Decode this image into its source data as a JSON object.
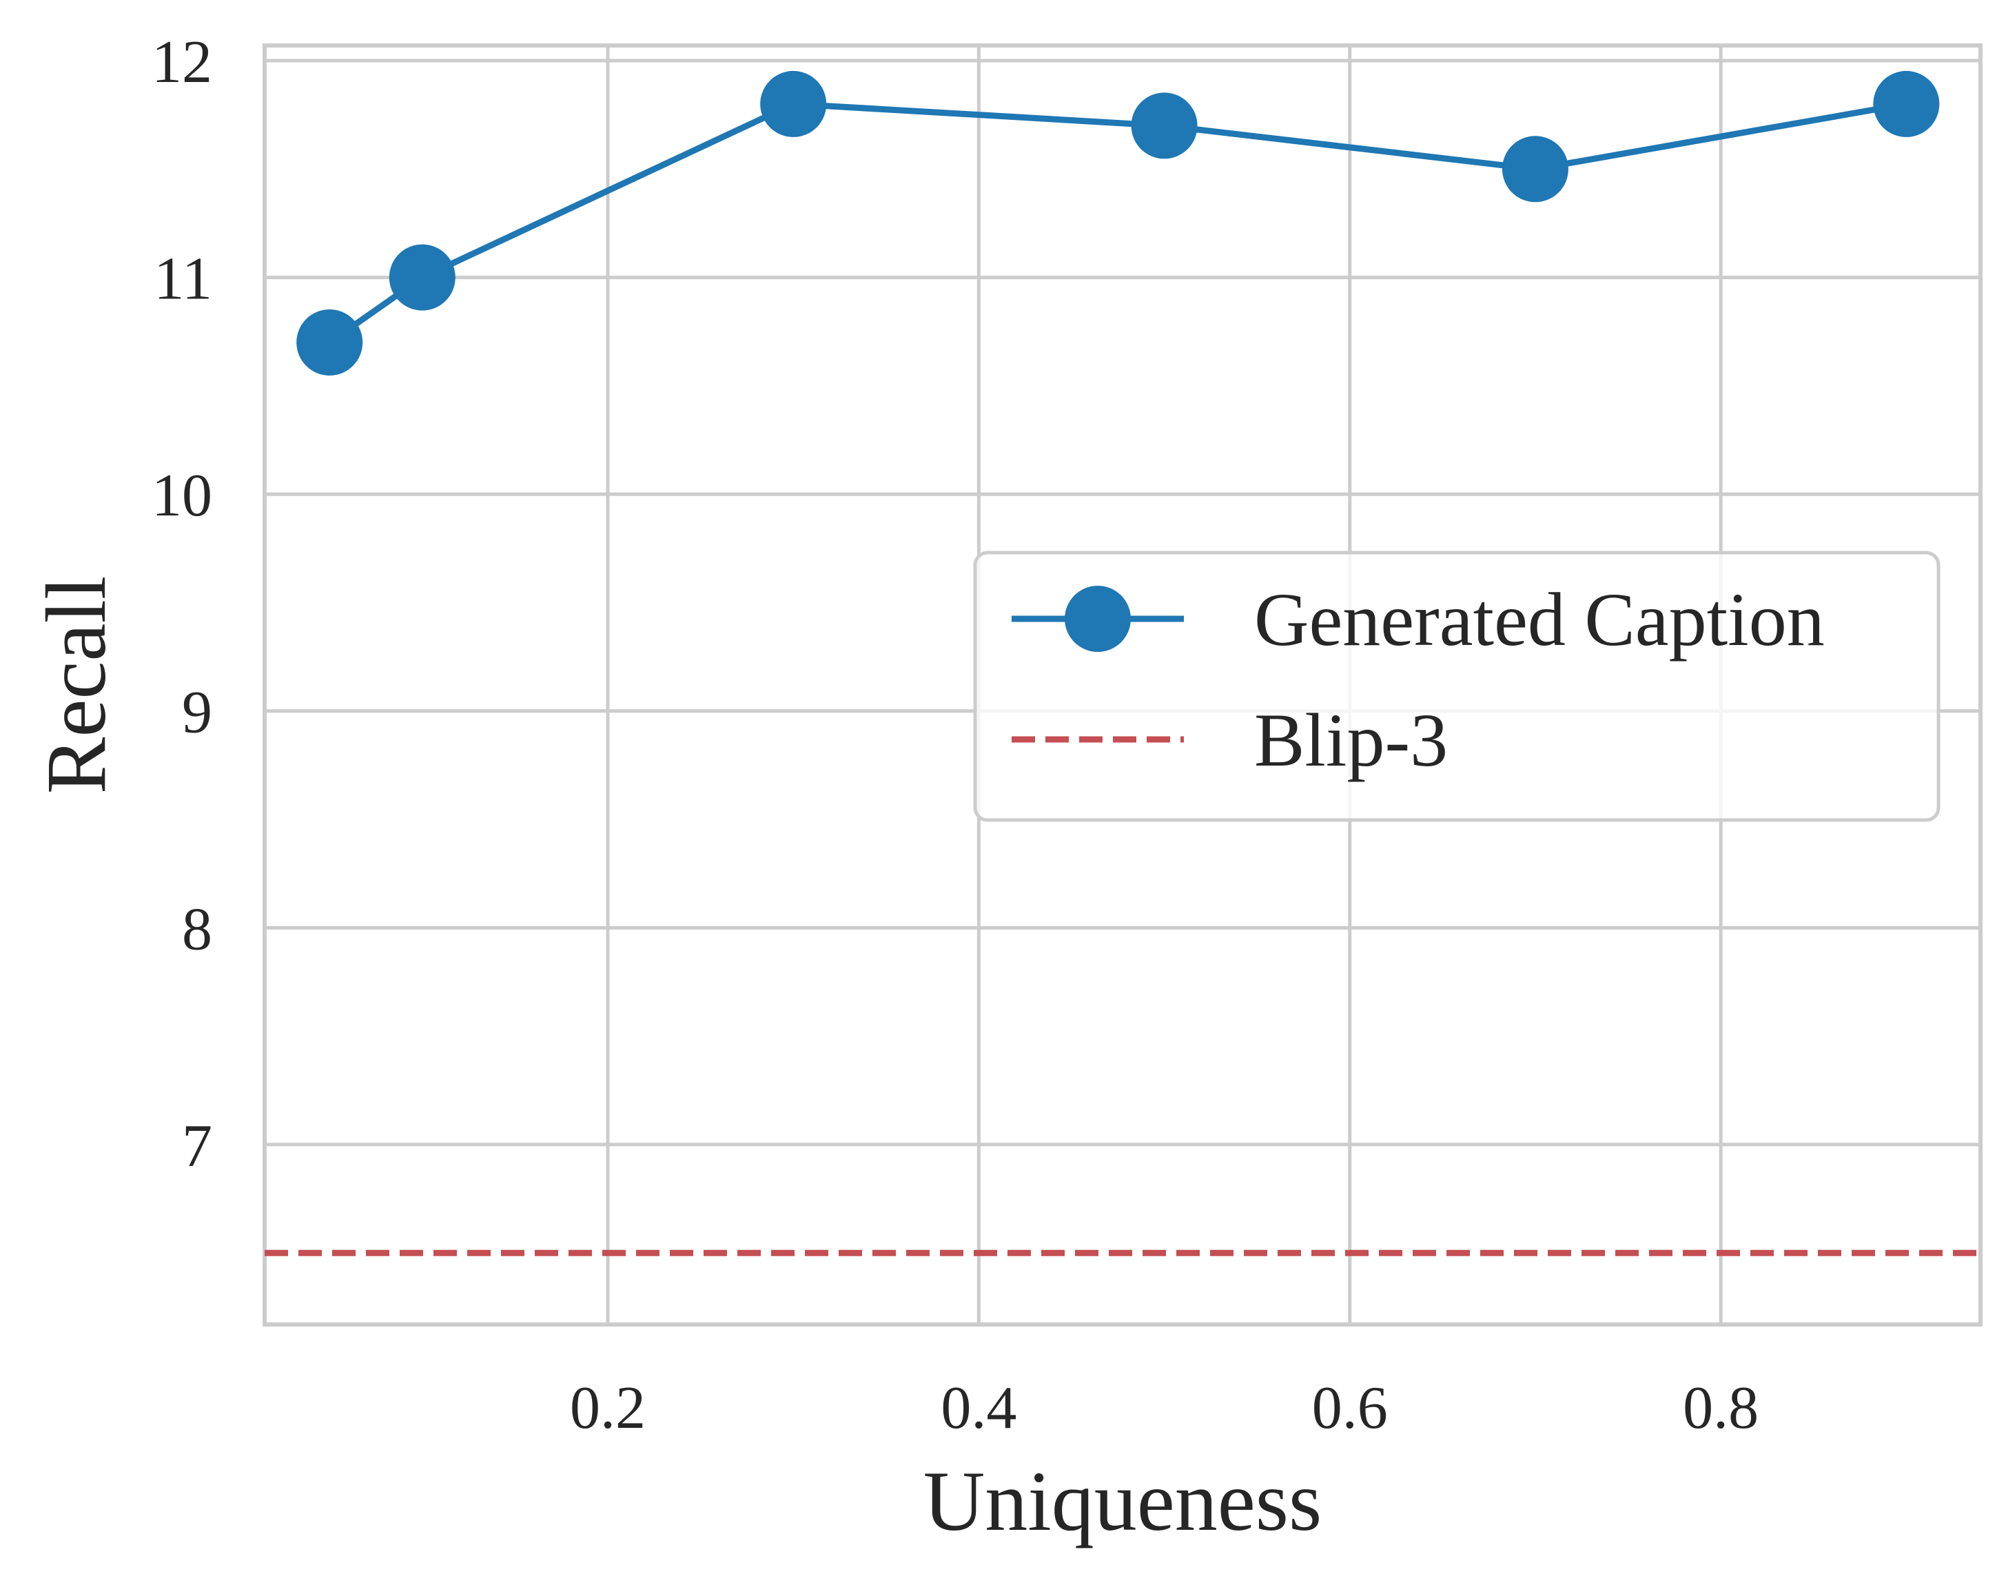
{
  "chart_data": {
    "type": "line",
    "xlabel": "Uniqueness",
    "ylabel": "Recall",
    "xlim": [
      0.015,
      0.94
    ],
    "ylim": [
      6.17,
      12.07
    ],
    "xticks": [
      0.2,
      0.4,
      0.6,
      0.8
    ],
    "xtick_labels": [
      "0.2",
      "0.4",
      "0.6",
      "0.8"
    ],
    "yticks": [
      7,
      8,
      9,
      10,
      11,
      12
    ],
    "ytick_labels": [
      "7",
      "8",
      "9",
      "10",
      "11",
      "12"
    ],
    "grid": true,
    "legend_position": "center-right",
    "series": [
      {
        "name": "Generated Caption",
        "style": "solid line with circle markers",
        "color": "#1f77b4",
        "x": [
          0.05,
          0.1,
          0.3,
          0.5,
          0.7,
          0.9
        ],
        "y": [
          10.7,
          11.0,
          11.8,
          11.7,
          11.5,
          11.8
        ]
      },
      {
        "name": "Blip-3",
        "style": "dashed horizontal reference line",
        "color": "#c44e52",
        "y": 6.5
      }
    ]
  },
  "colors": {
    "grid": "#cccccc",
    "frame": "#cccccc",
    "text": "#262626",
    "background": "#ffffff"
  }
}
